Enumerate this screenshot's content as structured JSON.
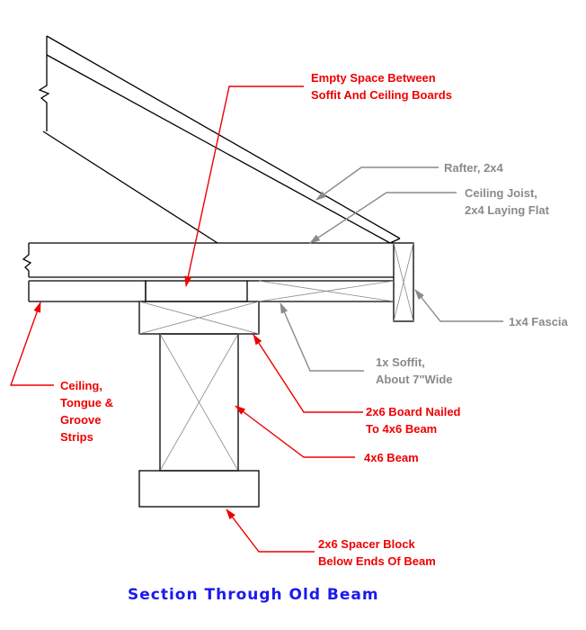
{
  "title": "Section Through Old Beam",
  "colors": {
    "line": "#000000",
    "callout_red": "#ee0000",
    "callout_gray": "#8a8a8a",
    "title_blue": "#1a1aee"
  },
  "callouts": {
    "empty_space": [
      "Empty Space Between",
      "Soffit And Ceiling Boards"
    ],
    "rafter": [
      "Rafter, 2x4"
    ],
    "ceiling_joist": [
      "Ceiling Joist,",
      "2x4 Laying Flat"
    ],
    "fascia": [
      "1x4 Fascia"
    ],
    "soffit": [
      "1x  Soffit,",
      "About 7\"Wide"
    ],
    "ceiling": [
      "Ceiling,",
      "Tongue &",
      "Groove",
      "Strips"
    ],
    "board_2x6": [
      "2x6 Board Nailed",
      "To  4x6 Beam"
    ],
    "beam_4x6": [
      "4x6 Beam"
    ],
    "spacer_block": [
      "2x6 Spacer Block",
      "Below Ends Of Beam"
    ]
  }
}
